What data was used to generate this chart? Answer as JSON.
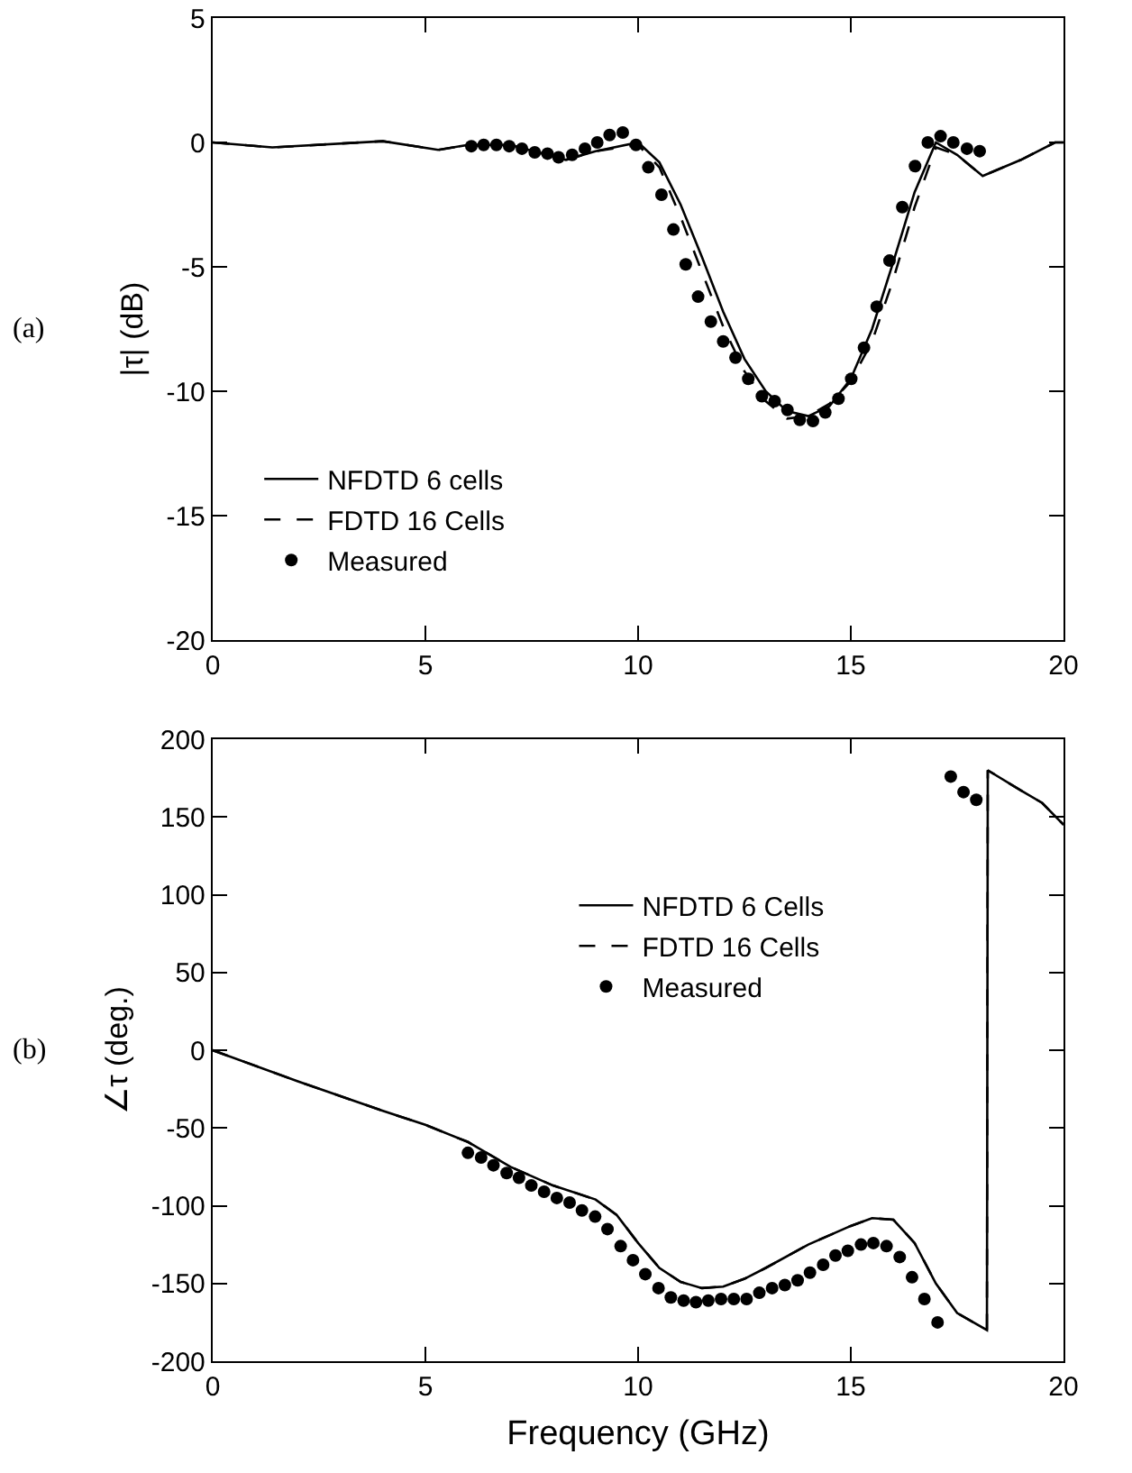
{
  "chart_data": [
    {
      "type": "line",
      "ylabel": "|τ| (dB)",
      "annotations": [
        "(a)"
      ],
      "xlim": [
        0,
        20
      ],
      "xticks": [
        0,
        5,
        10,
        15,
        20
      ],
      "ylim": [
        -20,
        5
      ],
      "yticks": [
        -20,
        -15,
        -10,
        -5,
        0,
        5
      ],
      "grid": false,
      "legend": "bottom left",
      "series": [
        {
          "name": "NFDTD 6 cells",
          "line_style": "solid",
          "color": "#000000",
          "x": [
            0,
            1.4,
            4,
            5.3,
            6,
            7,
            8.3,
            9,
            10,
            10.5,
            11,
            11.5,
            12,
            12.5,
            13,
            13.5,
            14,
            14.5,
            15,
            15.5,
            16,
            16.5,
            17,
            17.5,
            18.1,
            19,
            19.8,
            20
          ],
          "values": [
            0,
            -0.2,
            0.05,
            -0.3,
            -0.1,
            -0.1,
            -0.7,
            -0.35,
            0,
            -0.8,
            -2.5,
            -4.6,
            -6.8,
            -8.7,
            -10,
            -10.8,
            -11,
            -10.6,
            -9.5,
            -7.5,
            -4.8,
            -2,
            0,
            -0.5,
            -1.35,
            -0.7,
            0,
            0
          ]
        },
        {
          "name": "FDTD 16 Cells",
          "line_style": "dashed",
          "color": "#000000",
          "x": [
            0,
            1.4,
            4,
            5.3,
            6,
            7,
            8.3,
            9,
            10,
            10.5,
            11,
            11.5,
            12,
            12.5,
            13,
            13.5,
            14,
            14.5,
            15,
            15.5,
            16,
            16.5,
            17,
            17.5,
            18.1,
            19,
            19.8,
            20
          ],
          "values": [
            0,
            -0.2,
            0.05,
            -0.3,
            -0.1,
            -0.1,
            -0.7,
            -0.35,
            -0.1,
            -1,
            -3,
            -5.2,
            -7.4,
            -9.2,
            -10.4,
            -11.1,
            -11,
            -10.5,
            -9.6,
            -8,
            -5.5,
            -2.6,
            -0.2,
            -0.5,
            -1.35,
            -0.7,
            0,
            0
          ]
        },
        {
          "name": "Measured",
          "type": "scatter",
          "marker": "circle",
          "color": "#000000",
          "x": [
            6.08,
            6.37,
            6.67,
            6.97,
            7.27,
            7.57,
            7.87,
            8.13,
            8.45,
            8.75,
            9.04,
            9.33,
            9.64,
            9.95,
            10.24,
            10.55,
            10.83,
            11.12,
            11.41,
            11.71,
            12,
            12.29,
            12.59,
            12.91,
            13.21,
            13.51,
            13.8,
            14.11,
            14.4,
            14.71,
            15.01,
            15.31,
            15.61,
            15.91,
            16.21,
            16.51,
            16.81,
            17.11,
            17.41,
            17.73,
            18.03
          ],
          "values": [
            -0.15,
            -0.1,
            -0.1,
            -0.15,
            -0.25,
            -0.4,
            -0.45,
            -0.6,
            -0.5,
            -0.25,
            0,
            0.3,
            0.4,
            -0.1,
            -1,
            -2.1,
            -3.5,
            -4.9,
            -6.2,
            -7.2,
            -8,
            -8.65,
            -9.5,
            -10.2,
            -10.4,
            -10.75,
            -11.15,
            -11.2,
            -10.85,
            -10.3,
            -9.5,
            -8.25,
            -6.6,
            -4.75,
            -2.6,
            -0.95,
            0,
            0.25,
            0,
            -0.25,
            -0.35
          ]
        }
      ]
    },
    {
      "type": "line",
      "xlabel": "Frequency (GHz)",
      "ylabel": "∠τ (deg.)",
      "annotations": [
        "(b)"
      ],
      "xlim": [
        0,
        20
      ],
      "xticks": [
        0,
        5,
        10,
        15,
        20
      ],
      "ylim": [
        -200,
        200
      ],
      "yticks": [
        -200,
        -150,
        -100,
        -50,
        0,
        50,
        100,
        150,
        200
      ],
      "grid": false,
      "legend": "top right",
      "series": [
        {
          "name": "NFDTD 6 Cells",
          "line_style": "solid",
          "color": "#000000",
          "x": [
            0,
            2,
            4,
            5,
            6,
            7,
            8,
            9,
            9.5,
            10,
            10.5,
            11,
            11.5,
            12,
            12.5,
            13,
            14,
            15,
            15.5,
            16,
            16.5,
            17,
            17.5,
            18.2,
            18.22,
            19,
            19.5,
            20
          ],
          "values": [
            0,
            -20,
            -39,
            -48,
            -59,
            -75,
            -87,
            -96,
            -106,
            -124,
            -140,
            -149,
            -153,
            -152,
            -147,
            -140,
            -125,
            -113,
            -108,
            -109,
            -124,
            -150,
            -169,
            -180,
            180,
            167,
            159,
            145
          ]
        },
        {
          "name": "FDTD 16 Cells",
          "line_style": "dashed",
          "color": "#000000",
          "x": [
            0,
            2,
            4,
            5,
            6,
            7,
            8,
            9,
            9.5,
            10,
            10.5,
            11,
            11.5,
            12,
            12.5,
            13,
            14,
            15,
            15.5,
            16,
            16.5,
            17,
            17.5,
            18.2,
            18.22,
            19,
            19.5,
            20
          ],
          "values": [
            0,
            -20,
            -39,
            -48,
            -59,
            -75,
            -87,
            -96,
            -106,
            -124,
            -140,
            -149,
            -153,
            -152,
            -147,
            -140,
            -125,
            -113,
            -108,
            -109,
            -124,
            -150,
            -169,
            -180,
            180,
            167,
            159,
            145
          ]
        },
        {
          "name": "Measured",
          "type": "scatter",
          "marker": "circle",
          "color": "#000000",
          "x": [
            6,
            6.31,
            6.6,
            6.91,
            7.2,
            7.49,
            7.79,
            8.09,
            8.39,
            8.68,
            8.99,
            9.28,
            9.59,
            9.88,
            10.17,
            10.48,
            10.77,
            11.07,
            11.36,
            11.65,
            11.95,
            12.25,
            12.55,
            12.85,
            13.15,
            13.45,
            13.75,
            14.04,
            14.35,
            14.64,
            14.93,
            15.24,
            15.53,
            15.84,
            16.15,
            16.44,
            16.73,
            17.04,
            17.35,
            17.65,
            17.95
          ],
          "values": [
            -66,
            -69,
            -74,
            -79,
            -82,
            -87,
            -91,
            -95,
            -98,
            -103,
            -107,
            -115,
            -126,
            -135,
            -144,
            -153,
            -159,
            -161,
            -162,
            -161,
            -160,
            -160,
            -160,
            -156,
            -153,
            -151,
            -148,
            -143,
            -138,
            -132,
            -129,
            -125,
            -124,
            -126,
            -133,
            -146,
            -160,
            -175,
            176,
            166,
            161
          ]
        }
      ]
    }
  ]
}
